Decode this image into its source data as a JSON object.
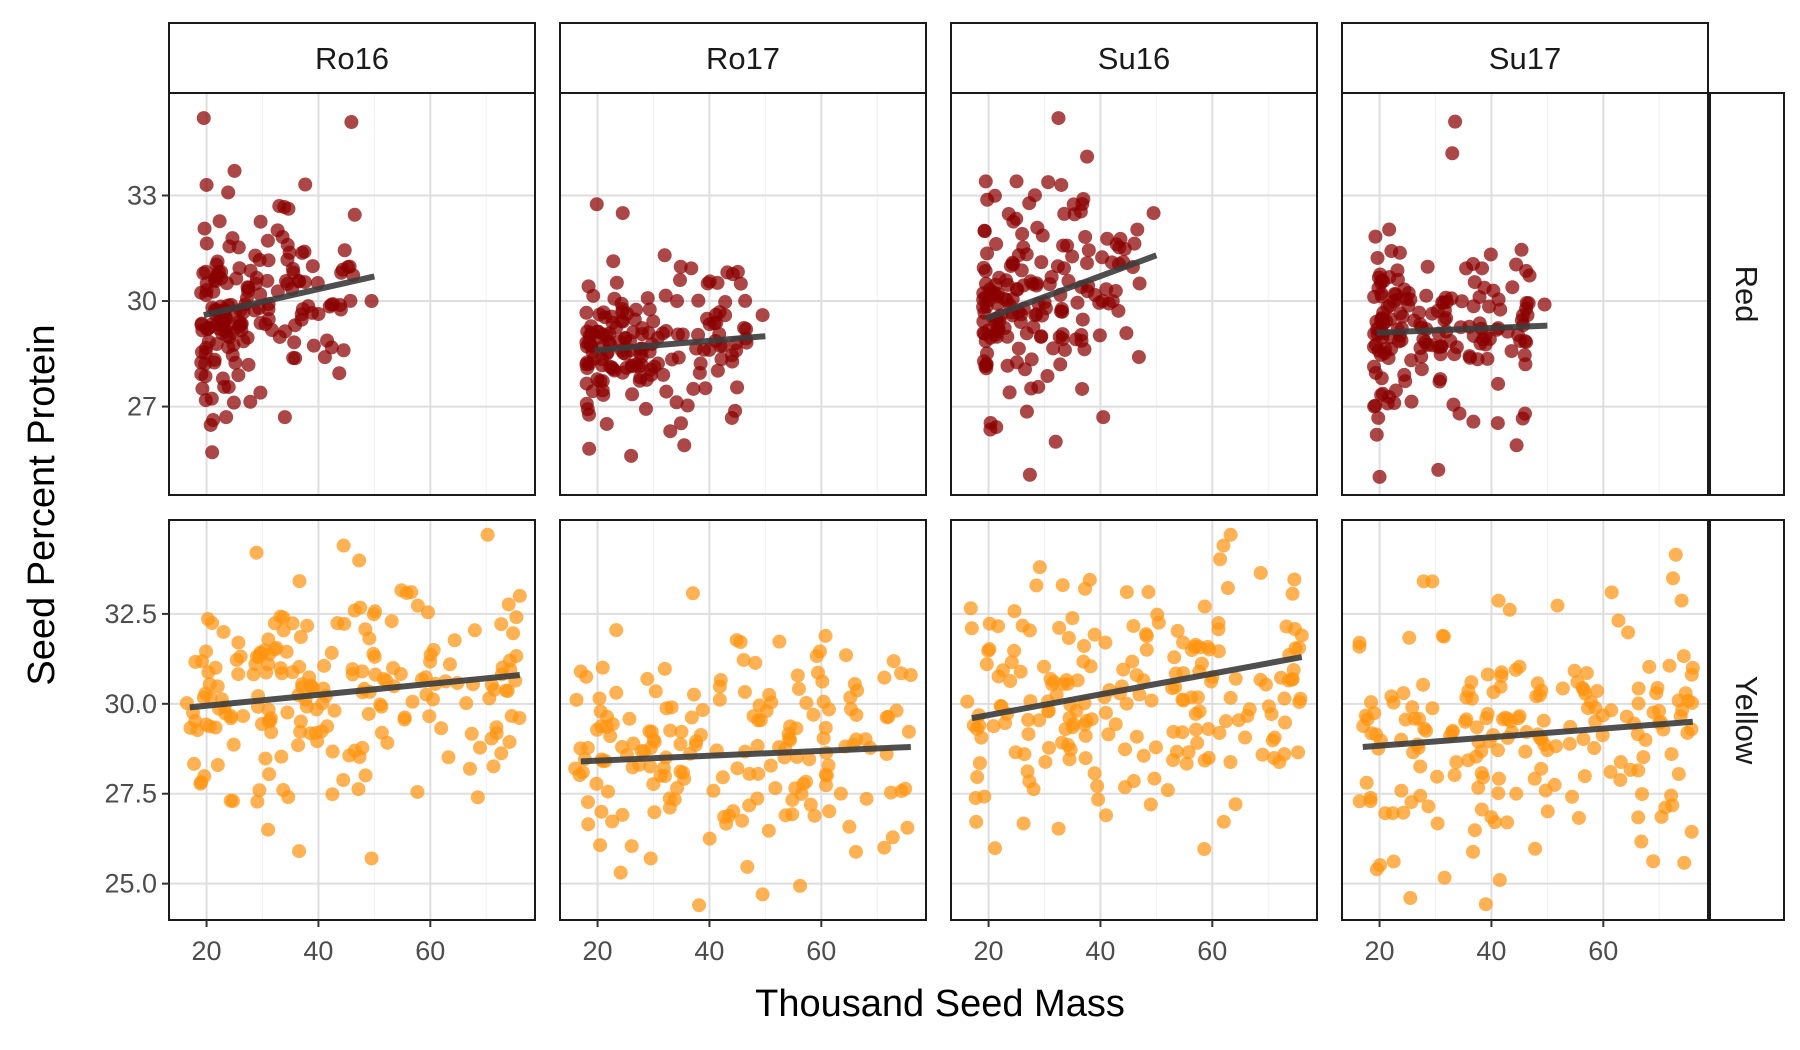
{
  "chart_data": {
    "type": "scatter",
    "facet_columns": [
      "Ro16",
      "Ro17",
      "Su16",
      "Su17"
    ],
    "facet_rows": [
      "Red",
      "Yellow"
    ],
    "xlabel": "Thousand Seed Mass",
    "ylabel": "Seed Percent Protein",
    "x_ticks": [
      20,
      40,
      60
    ],
    "xlim": [
      14,
      78
    ],
    "grid": true,
    "legend": "none",
    "row_scales": {
      "Red": {
        "ylim": [
          24.6,
          35.8
        ],
        "ticks": [
          27,
          30,
          33
        ],
        "tick_labels": [
          "27",
          "30",
          "33"
        ]
      },
      "Yellow": {
        "ylim": [
          24.1,
          35.0
        ],
        "ticks": [
          25.0,
          27.5,
          30.0,
          32.5
        ],
        "tick_labels": [
          "25.0",
          "27.5",
          "30.0",
          "32.5"
        ]
      }
    },
    "colors": {
      "Red": "#8b0000",
      "Yellow": "#ff9410",
      "trend": "#3c3c3c"
    },
    "panels": [
      {
        "row": "Red",
        "col": "Ro16",
        "n": 170,
        "x_range": [
          19,
          50
        ],
        "y_mean": 30.1,
        "y_sd": 1.2,
        "fit": {
          "x": [
            19.5,
            50
          ],
          "y": [
            29.6,
            30.7
          ]
        },
        "outliers": [
          [
            19.5,
            35.2
          ],
          [
            20,
            33.3
          ],
          [
            25,
            33.7
          ],
          [
            23.5,
            26.7
          ],
          [
            21,
            25.7
          ],
          [
            34,
            26.7
          ],
          [
            49.5,
            30.0
          ],
          [
            44.5,
            28.6
          ],
          [
            33,
            32.7
          ]
        ]
      },
      {
        "row": "Red",
        "col": "Ro17",
        "n": 160,
        "x_range": [
          18,
          50
        ],
        "y_mean": 28.7,
        "y_sd": 1.1,
        "fit": {
          "x": [
            19.5,
            50
          ],
          "y": [
            28.6,
            29.0
          ]
        },
        "outliers": [
          [
            24.5,
            32.5
          ],
          [
            18.5,
            25.8
          ],
          [
            26,
            25.6
          ],
          [
            35.5,
            25.9
          ],
          [
            33,
            26.3
          ],
          [
            49.5,
            29.6
          ],
          [
            32,
            31.3
          ]
        ]
      },
      {
        "row": "Red",
        "col": "Su16",
        "n": 170,
        "x_range": [
          19,
          50
        ],
        "y_mean": 30.3,
        "y_sd": 1.4,
        "fit": {
          "x": [
            19.5,
            50
          ],
          "y": [
            29.5,
            31.3
          ]
        },
        "outliers": [
          [
            32.5,
            35.2
          ],
          [
            19.5,
            33.4
          ],
          [
            25,
            33.4
          ],
          [
            33,
            33.3
          ],
          [
            32,
            26.0
          ],
          [
            40.5,
            26.7
          ],
          [
            49.5,
            32.5
          ],
          [
            47,
            30.5
          ]
        ]
      },
      {
        "row": "Red",
        "col": "Su17",
        "n": 165,
        "x_range": [
          19,
          50
        ],
        "y_mean": 29.3,
        "y_sd": 1.2,
        "fit": {
          "x": [
            19.5,
            50
          ],
          "y": [
            29.1,
            29.3
          ]
        },
        "outliers": [
          [
            33.5,
            35.1
          ],
          [
            33,
            34.2
          ],
          [
            20,
            25.0
          ],
          [
            30.5,
            25.2
          ],
          [
            19.5,
            26.2
          ],
          [
            44.5,
            25.9
          ],
          [
            46,
            26.8
          ],
          [
            49.5,
            29.9
          ]
        ]
      },
      {
        "row": "Yellow",
        "col": "Ro16",
        "n": 200,
        "x_range": [
          16,
          76
        ],
        "y_mean": 30.3,
        "y_sd": 1.6,
        "fit": {
          "x": [
            17,
            76
          ],
          "y": [
            29.9,
            30.8
          ]
        },
        "outliers": [
          [
            44.5,
            34.4
          ],
          [
            49.5,
            25.7
          ],
          [
            76,
            33.0
          ],
          [
            68.5,
            27.4
          ],
          [
            31,
            26.5
          ]
        ]
      },
      {
        "row": "Yellow",
        "col": "Ro17",
        "n": 180,
        "x_range": [
          16,
          76
        ],
        "y_mean": 28.6,
        "y_sd": 1.5,
        "fit": {
          "x": [
            17,
            76
          ],
          "y": [
            28.4,
            28.8
          ]
        },
        "outliers": [
          [
            49.5,
            24.7
          ],
          [
            76,
            30.8
          ],
          [
            17,
            30.9
          ],
          [
            29.5,
            25.7
          ]
        ]
      },
      {
        "row": "Yellow",
        "col": "Su16",
        "n": 200,
        "x_range": [
          16,
          76
        ],
        "y_mean": 30.3,
        "y_sd": 1.6,
        "fit": {
          "x": [
            17,
            76
          ],
          "y": [
            29.6,
            31.3
          ]
        },
        "outliers": [
          [
            62,
            34.4
          ],
          [
            41,
            26.9
          ],
          [
            49,
            27.2
          ],
          [
            76,
            31.9
          ],
          [
            17,
            32.1
          ]
        ]
      },
      {
        "row": "Yellow",
        "col": "Su17",
        "n": 190,
        "x_range": [
          16,
          76
        ],
        "y_mean": 29.2,
        "y_sd": 1.5,
        "fit": {
          "x": [
            17,
            76
          ],
          "y": [
            28.8,
            29.5
          ]
        },
        "outliers": [
          [
            25.5,
            24.6
          ],
          [
            41.5,
            25.1
          ],
          [
            61.5,
            33.1
          ],
          [
            76,
            31.0
          ]
        ]
      }
    ]
  }
}
